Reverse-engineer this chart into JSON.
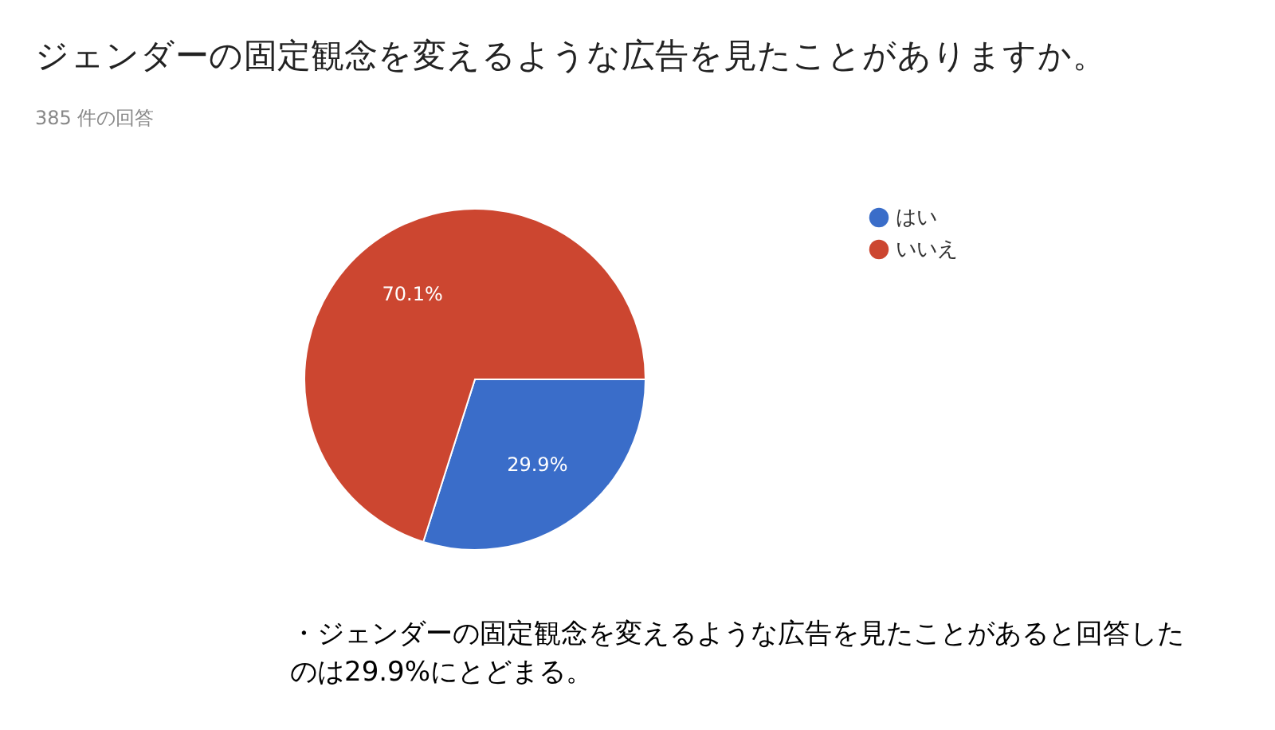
{
  "chart_data": {
    "type": "pie",
    "title": "ジェンダーの固定観念を変えるような広告を見たことがありますか。",
    "subtitle": "385 件の回答",
    "categories": [
      "はい",
      "いいえ"
    ],
    "values": [
      29.9,
      70.1
    ],
    "colors": [
      "#3a6dc9",
      "#cc4630"
    ],
    "value_labels": [
      "29.9%",
      "70.1%"
    ],
    "legend": "top right",
    "annotations": [
      "・ジェンダーの固定観念を変えるような広告を見たことがあると回答したのは29.9%にとどまる。"
    ]
  }
}
